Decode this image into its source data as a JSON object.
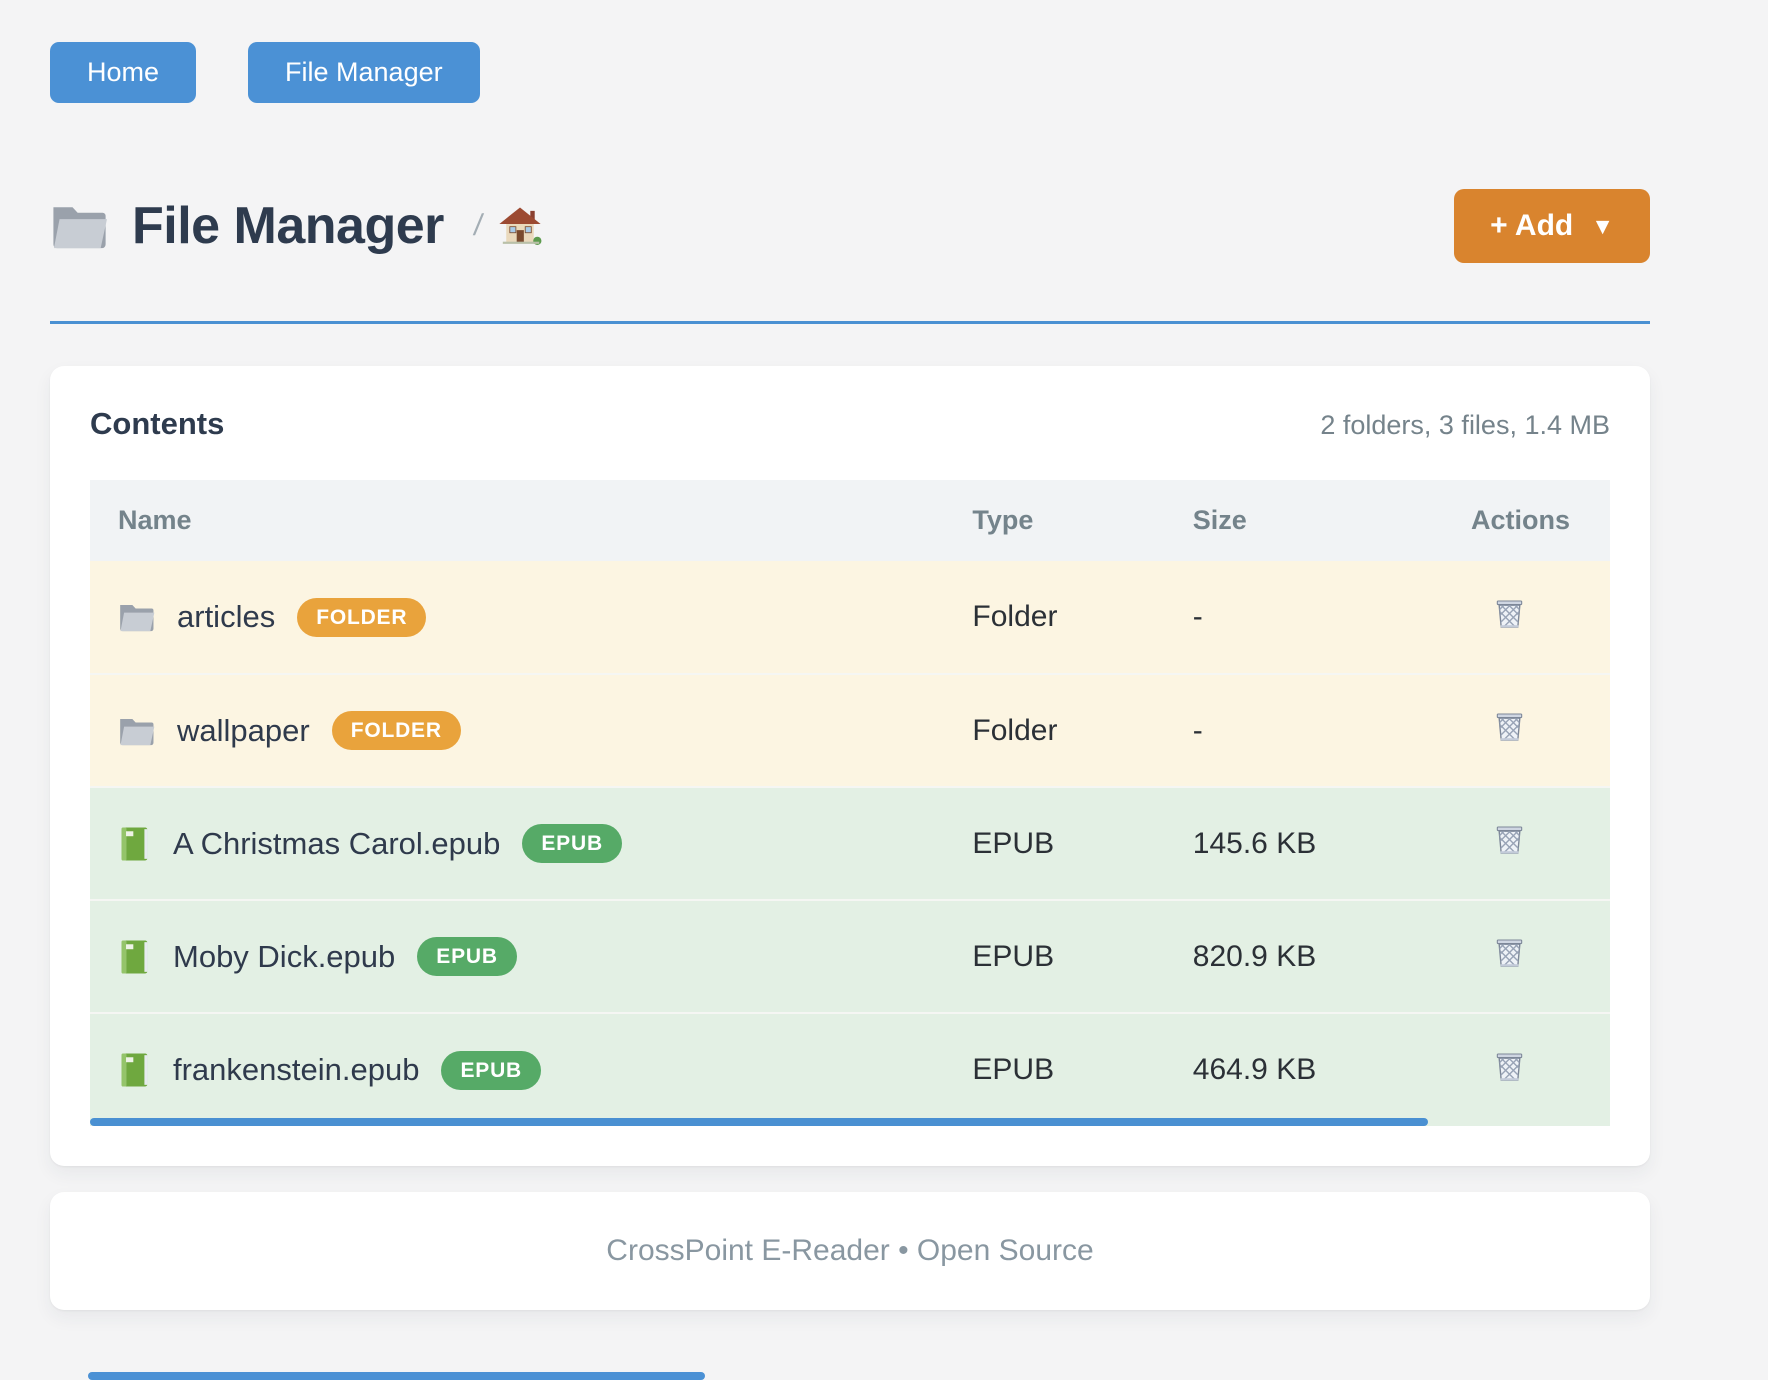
{
  "nav": {
    "buttons": [
      {
        "label": "Home"
      },
      {
        "label": "File Manager"
      }
    ]
  },
  "header": {
    "title": "File Manager",
    "title_icon": "folder-icon",
    "breadcrumb_separator": "/",
    "breadcrumb_home_icon": "home-icon",
    "add_label": "+ Add",
    "add_caret": "▼"
  },
  "contents": {
    "title": "Contents",
    "summary": "2 folders, 3 files, 1.4 MB",
    "columns": [
      "Name",
      "Type",
      "Size",
      "Actions"
    ],
    "row_action_icon": "trash-icon",
    "rows": [
      {
        "name": "articles",
        "badge": "FOLDER",
        "kind": "folder",
        "icon": "folder-icon",
        "type": "Folder",
        "size": "-"
      },
      {
        "name": "wallpaper",
        "badge": "FOLDER",
        "kind": "folder",
        "icon": "folder-icon",
        "type": "Folder",
        "size": "-"
      },
      {
        "name": "A Christmas Carol.epub",
        "badge": "EPUB",
        "kind": "epub",
        "icon": "book-icon",
        "type": "EPUB",
        "size": "145.6 KB"
      },
      {
        "name": "Moby Dick.epub",
        "badge": "EPUB",
        "kind": "epub",
        "icon": "book-icon",
        "type": "EPUB",
        "size": "820.9 KB"
      },
      {
        "name": "frankenstein.epub",
        "badge": "EPUB",
        "kind": "epub",
        "icon": "book-icon",
        "type": "EPUB",
        "size": "464.9 KB"
      }
    ]
  },
  "footer": {
    "text": "CrossPoint E-Reader • Open Source"
  },
  "colors": {
    "page_bg": "#f4f4f5",
    "primary_blue": "#4b91d5",
    "title_underline": "#4a90d2",
    "accent_orange": "#d9842e",
    "badge_folder": "#e9a33c",
    "badge_epub": "#56aa67",
    "row_folder_bg": "#fcf5e2",
    "row_epub_bg": "#e3f0e4",
    "table_header_bg": "#f1f3f5",
    "muted_text": "#75838b"
  }
}
